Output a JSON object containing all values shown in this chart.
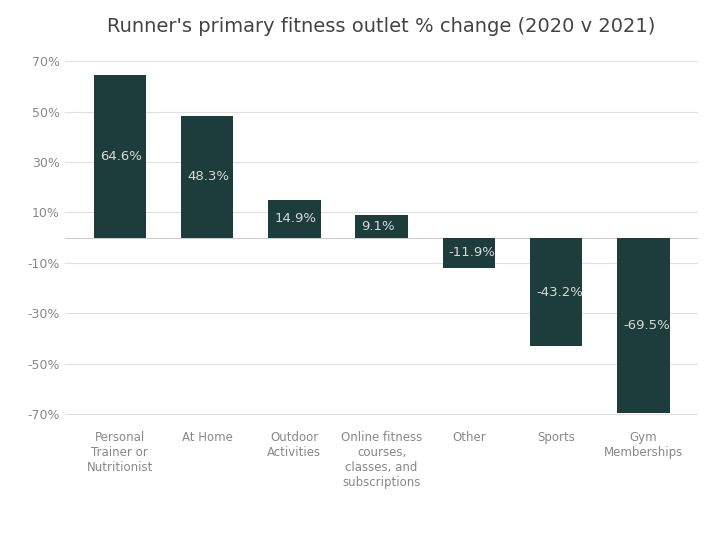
{
  "title": "Runner's primary fitness outlet % change (2020 v 2021)",
  "categories": [
    "Personal\nTrainer or\nNutritionist",
    "At Home",
    "Outdoor\nActivities",
    "Online fitness\ncourses,\nclasses, and\nsubscriptions",
    "Other",
    "Sports",
    "Gym\nMemberships"
  ],
  "values": [
    64.6,
    48.3,
    14.9,
    9.1,
    -11.9,
    -43.2,
    -69.5
  ],
  "bar_color": "#1d3d3d",
  "label_color": "#d8d8d8",
  "background_color": "#ffffff",
  "ylim": [
    -75,
    75
  ],
  "yticks": [
    -70,
    -50,
    -30,
    -10,
    10,
    30,
    50,
    70
  ],
  "ytick_labels": [
    "-70%",
    "-50%",
    "-30%",
    "-10%",
    "10%",
    "30%",
    "50%",
    "70%"
  ],
  "title_fontsize": 14,
  "label_fontsize": 9.5,
  "tick_fontsize": 9,
  "xlabel_fontsize": 8.5,
  "bar_width": 0.6
}
